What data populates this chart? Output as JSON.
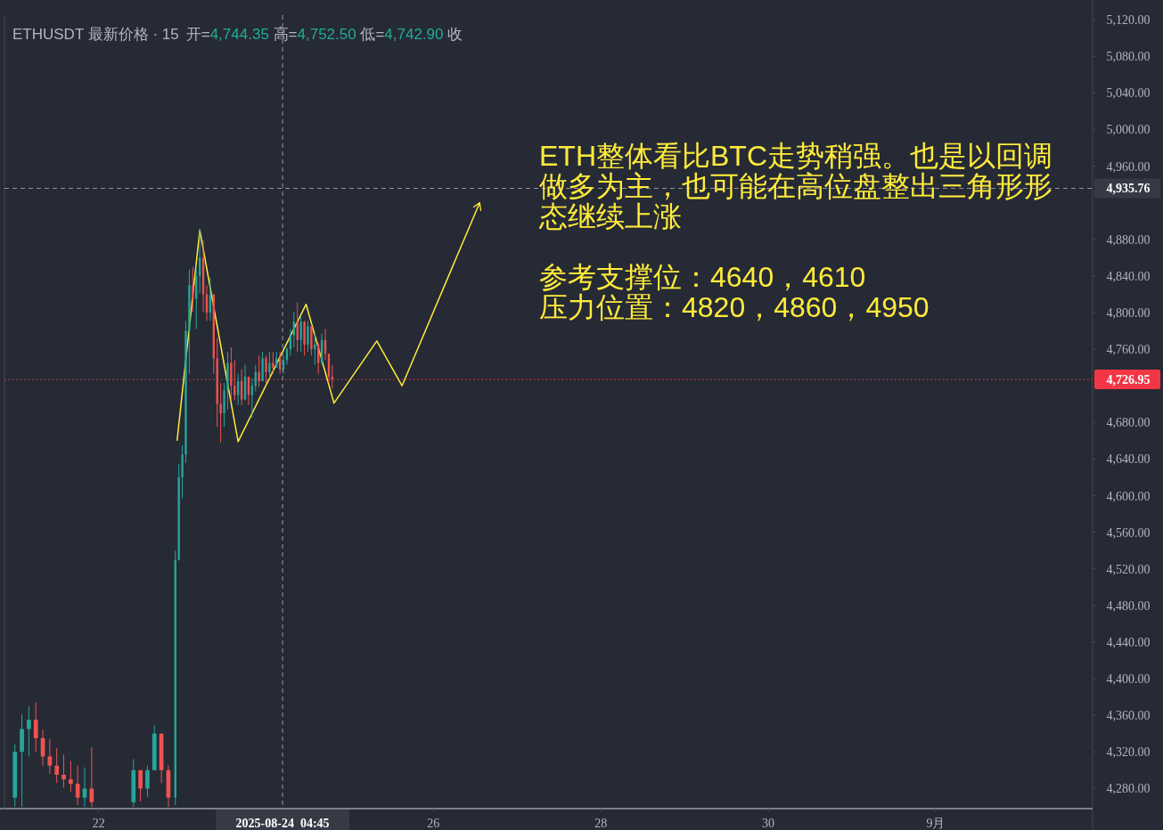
{
  "chart_data": {
    "type": "candlestick",
    "title": "ETHUSDT 最新价格 · 15",
    "subtitle": "开=4,744.35 高=4,752.50 低=4,742.90 收",
    "x": [
      "2025-08-21T00:00",
      "2025-08-21T02:00",
      "2025-08-21T04:00",
      "2025-08-21T06:00",
      "2025-08-21T08:00",
      "2025-08-21T10:00",
      "2025-08-21T12:00",
      "2025-08-21T14:00",
      "2025-08-21T16:00",
      "2025-08-21T18:00",
      "2025-08-21T20:00",
      "2025-08-21T22:00",
      "2025-08-22T10:00",
      "2025-08-22T12:00",
      "2025-08-22T14:00",
      "2025-08-22T16:00",
      "2025-08-22T18:00",
      "2025-08-22T20:00",
      "2025-08-22T22:00",
      "2025-08-22T23:00",
      "2025-08-23T00:00",
      "2025-08-23T01:00",
      "2025-08-23T02:00",
      "2025-08-23T03:00",
      "2025-08-23T04:00",
      "2025-08-23T05:00",
      "2025-08-23T06:00",
      "2025-08-23T07:00",
      "2025-08-23T08:00",
      "2025-08-23T09:00",
      "2025-08-23T10:00",
      "2025-08-23T11:00",
      "2025-08-23T12:00",
      "2025-08-23T13:00",
      "2025-08-23T14:00",
      "2025-08-23T15:00",
      "2025-08-23T16:00",
      "2025-08-23T17:00",
      "2025-08-23T18:00",
      "2025-08-23T19:00",
      "2025-08-23T20:00",
      "2025-08-23T21:00",
      "2025-08-23T22:00",
      "2025-08-23T23:00",
      "2025-08-24T00:00",
      "2025-08-24T01:00",
      "2025-08-24T02:00",
      "2025-08-24T03:00",
      "2025-08-24T04:00",
      "2025-08-24T05:00",
      "2025-08-24T06:00",
      "2025-08-24T07:00",
      "2025-08-24T08:00",
      "2025-08-24T09:00",
      "2025-08-24T10:00",
      "2025-08-24T11:00",
      "2025-08-24T12:00",
      "2025-08-24T13:00",
      "2025-08-24T14:00",
      "2025-08-24T15:00",
      "2025-08-24T16:00",
      "2025-08-24T17:00",
      "2025-08-24T18:00",
      "2025-08-24T19:00"
    ],
    "ohlc": [
      [
        4270,
        4328,
        4260,
        4320
      ],
      [
        4320,
        4361,
        4260,
        4345
      ],
      [
        4345,
        4370,
        4315,
        4355
      ],
      [
        4355,
        4374,
        4320,
        4335
      ],
      [
        4335,
        4344,
        4305,
        4315
      ],
      [
        4315,
        4334,
        4296,
        4305
      ],
      [
        4305,
        4324,
        4286,
        4295
      ],
      [
        4295,
        4317,
        4281,
        4290
      ],
      [
        4290,
        4310,
        4276,
        4285
      ],
      [
        4285,
        4305,
        4262,
        4270
      ],
      [
        4270,
        4303,
        4260,
        4280
      ],
      [
        4280,
        4325,
        4260,
        4265
      ],
      [
        4265,
        4312,
        4260,
        4300
      ],
      [
        4300,
        4300,
        4266,
        4280
      ],
      [
        4280,
        4305,
        4271,
        4300
      ],
      [
        4300,
        4349,
        4300,
        4340
      ],
      [
        4340,
        4340,
        4286,
        4300
      ],
      [
        4300,
        4305,
        4260,
        4270
      ],
      [
        4270,
        4540,
        4262,
        4530
      ],
      [
        4530,
        4635,
        4529,
        4620
      ],
      [
        4620,
        4655,
        4597,
        4645
      ],
      [
        4645,
        4791,
        4636,
        4780
      ],
      [
        4780,
        4847,
        4733,
        4830
      ],
      [
        4830,
        4850,
        4801,
        4815
      ],
      [
        4815,
        4850,
        4782,
        4840
      ],
      [
        4840,
        4892,
        4821,
        4860
      ],
      [
        4860,
        4879,
        4801,
        4820
      ],
      [
        4820,
        4830,
        4791,
        4800
      ],
      [
        4800,
        4838,
        4791,
        4820
      ],
      [
        4820,
        4820,
        4733,
        4750
      ],
      [
        4750,
        4772,
        4675,
        4700
      ],
      [
        4700,
        4723,
        4658,
        4690
      ],
      [
        4690,
        4723,
        4675,
        4715
      ],
      [
        4715,
        4757,
        4694,
        4745
      ],
      [
        4745,
        4762,
        4704,
        4720
      ],
      [
        4720,
        4748,
        4704,
        4710
      ],
      [
        4710,
        4733,
        4699,
        4725
      ],
      [
        4725,
        4738,
        4699,
        4705
      ],
      [
        4705,
        4743,
        4704,
        4730
      ],
      [
        4730,
        4730,
        4699,
        4710
      ],
      [
        4710,
        4728,
        4685,
        4720
      ],
      [
        4720,
        4743,
        4714,
        4735
      ],
      [
        4735,
        4753,
        4719,
        4725
      ],
      [
        4725,
        4757,
        4725,
        4750
      ],
      [
        4750,
        4753,
        4723,
        4735
      ],
      [
        4735,
        4757,
        4728,
        4745
      ],
      [
        4745,
        4757,
        4733,
        4740
      ],
      [
        4740,
        4757,
        4740,
        4750
      ],
      [
        4750,
        4757,
        4733,
        4738
      ],
      [
        4738,
        4753,
        4733,
        4748
      ],
      [
        4748,
        4762,
        4743,
        4760
      ],
      [
        4760,
        4782,
        4753,
        4775
      ],
      [
        4775,
        4801,
        4762,
        4790
      ],
      [
        4790,
        4811,
        4757,
        4770
      ],
      [
        4770,
        4796,
        4757,
        4790
      ],
      [
        4790,
        4791,
        4753,
        4765
      ],
      [
        4765,
        4791,
        4757,
        4785
      ],
      [
        4785,
        4787,
        4753,
        4760
      ],
      [
        4760,
        4777,
        4743,
        4765
      ],
      [
        4765,
        4767,
        4733,
        4745
      ],
      [
        4745,
        4777,
        4743,
        4770
      ],
      [
        4770,
        4782,
        4748,
        4755
      ],
      [
        4755,
        4755,
        4723,
        4730
      ],
      [
        4730,
        4743,
        4717,
        4727
      ]
    ],
    "series": [
      {
        "type": "line",
        "color": "#ffeb3b",
        "x": [
          "2025-08-22T22:30",
          "2025-08-23T05:00",
          "2025-08-23T16:00",
          "2025-08-24T11:30",
          "2025-08-24T19:30",
          "2025-08-25T07:45",
          "2025-08-25T15:00",
          "2025-08-26T13:15"
        ],
        "values": [
          4660,
          4890,
          4659,
          4809,
          4701,
          4769,
          4720,
          4920
        ]
      }
    ],
    "xlim": [
      "2025-08-20T21:00",
      "2025-09-02T21:00"
    ],
    "xticks": [
      {
        "value": "2025-08-22",
        "label": "22"
      },
      {
        "value": "2025-08-26",
        "label": "26"
      },
      {
        "value": "2025-08-28",
        "label": "28"
      },
      {
        "value": "2025-08-30",
        "label": "30"
      },
      {
        "value": "2025-09-01",
        "label": "9月"
      }
    ],
    "ylim": [
      4258,
      5125
    ],
    "yticks": [
      {
        "value": 4280,
        "label": "4,280.00"
      },
      {
        "value": 4320,
        "label": "4,320.00"
      },
      {
        "value": 4360,
        "label": "4,360.00"
      },
      {
        "value": 4400,
        "label": "4,400.00"
      },
      {
        "value": 4440,
        "label": "4,440.00"
      },
      {
        "value": 4480,
        "label": "4,480.00"
      },
      {
        "value": 4520,
        "label": "4,520.00"
      },
      {
        "value": 4560,
        "label": "4,560.00"
      },
      {
        "value": 4600,
        "label": "4,600.00"
      },
      {
        "value": 4640,
        "label": "4,640.00"
      },
      {
        "value": 4680,
        "label": "4,680.00"
      },
      {
        "value": 4760,
        "label": "4,760.00"
      },
      {
        "value": 4800,
        "label": "4,800.00"
      },
      {
        "value": 4840,
        "label": "4,840.00"
      },
      {
        "value": 4880,
        "label": "4,880.00"
      },
      {
        "value": 4960,
        "label": "4,960.00"
      },
      {
        "value": 5000,
        "label": "5,000.00"
      },
      {
        "value": 5040,
        "label": "5,040.00"
      },
      {
        "value": 5080,
        "label": "5,080.00"
      },
      {
        "value": 5120,
        "label": "5,120.00"
      }
    ],
    "ref_lines": [
      {
        "axis": "y",
        "value": 4726.95,
        "label": "4,726.95",
        "color": "#f23645",
        "line_style": "dotted"
      },
      {
        "axis": "y",
        "value": 4935.76,
        "label": "4,935.76",
        "color": "#9598a1",
        "line_style": "dashed"
      },
      {
        "axis": "x",
        "value": "2025-08-24T04:45",
        "label": "2025-08-24  04:45",
        "color": "#9598a1",
        "line_style": "dashed"
      }
    ],
    "annotations": [
      "ETH整体看比BTC走势稍强。也是以回调做多为主，也可能在高位盘整出三角形形态继续上涨",
      "参考支撑位：4640，4610",
      "压力位置：4820，4860，4950"
    ]
  }
}
